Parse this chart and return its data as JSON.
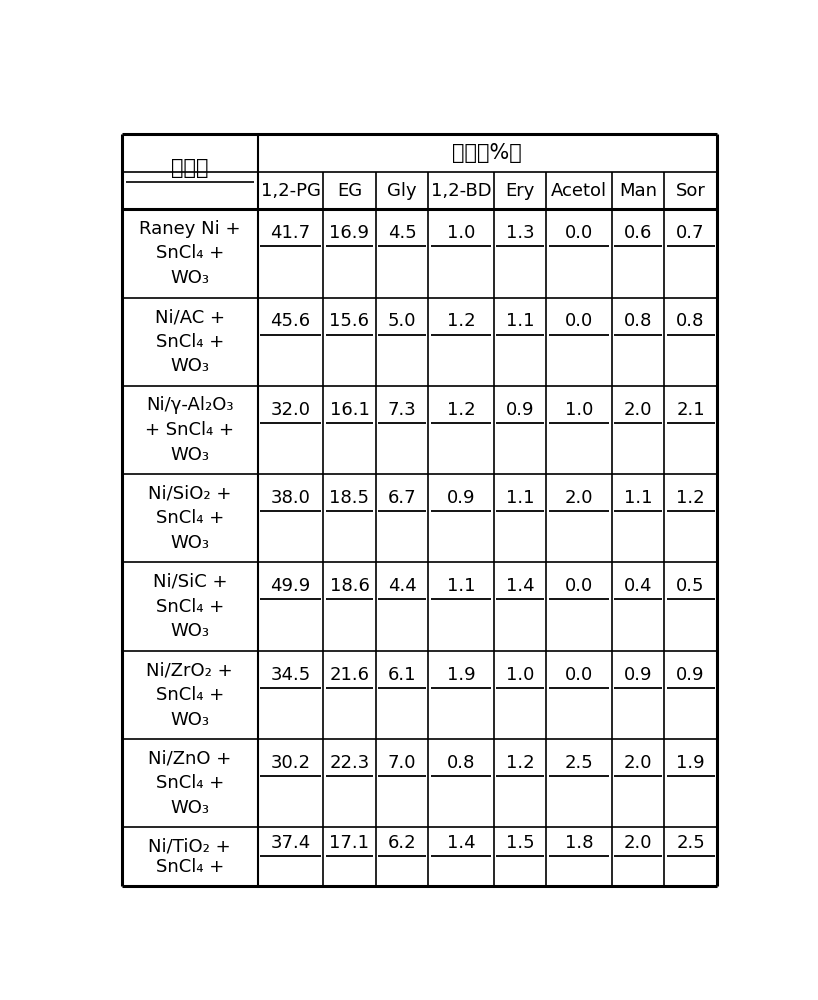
{
  "header_row1_left": "催化剂",
  "header_row1_right": "收率（%）",
  "col_labels": [
    "1,2-PG",
    "EG",
    "Gly",
    "1,2-BD",
    "Ery",
    "Acetol",
    "Man",
    "Sor"
  ],
  "rows": [
    {
      "catalyst_lines": [
        "Raney Ni +",
        "SnCl₄ +",
        "WO₃"
      ],
      "values": [
        "41.7",
        "16.9",
        "4.5",
        "1.0",
        "1.3",
        "0.0",
        "0.6",
        "0.7"
      ]
    },
    {
      "catalyst_lines": [
        "Ni/AC +",
        "SnCl₄ +",
        "WO₃"
      ],
      "values": [
        "45.6",
        "15.6",
        "5.0",
        "1.2",
        "1.1",
        "0.0",
        "0.8",
        "0.8"
      ]
    },
    {
      "catalyst_lines": [
        "Ni/γ-Al₂O₃",
        "+ SnCl₄ +",
        "WO₃"
      ],
      "values": [
        "32.0",
        "16.1",
        "7.3",
        "1.2",
        "0.9",
        "1.0",
        "2.0",
        "2.1"
      ]
    },
    {
      "catalyst_lines": [
        "Ni/SiO₂ +",
        "SnCl₄ +",
        "WO₃"
      ],
      "values": [
        "38.0",
        "18.5",
        "6.7",
        "0.9",
        "1.1",
        "2.0",
        "1.1",
        "1.2"
      ]
    },
    {
      "catalyst_lines": [
        "Ni/SiC +",
        "SnCl₄ +",
        "WO₃"
      ],
      "values": [
        "49.9",
        "18.6",
        "4.4",
        "1.1",
        "1.4",
        "0.0",
        "0.4",
        "0.5"
      ]
    },
    {
      "catalyst_lines": [
        "Ni/ZrO₂ +",
        "SnCl₄ +",
        "WO₃"
      ],
      "values": [
        "34.5",
        "21.6",
        "6.1",
        "1.9",
        "1.0",
        "0.0",
        "0.9",
        "0.9"
      ]
    },
    {
      "catalyst_lines": [
        "Ni/ZnO +",
        "SnCl₄ +",
        "WO₃"
      ],
      "values": [
        "30.2",
        "22.3",
        "7.0",
        "0.8",
        "1.2",
        "2.5",
        "2.0",
        "1.9"
      ]
    },
    {
      "catalyst_lines": [
        "Ni/TiO₂ +",
        "SnCl₄ +"
      ],
      "values": [
        "37.4",
        "17.1",
        "6.2",
        "1.4",
        "1.5",
        "1.8",
        "2.0",
        "2.5"
      ]
    }
  ],
  "background_color": "#ffffff",
  "text_color": "#000000",
  "fig_width": 8.18,
  "fig_height": 10.0,
  "dpi": 100
}
